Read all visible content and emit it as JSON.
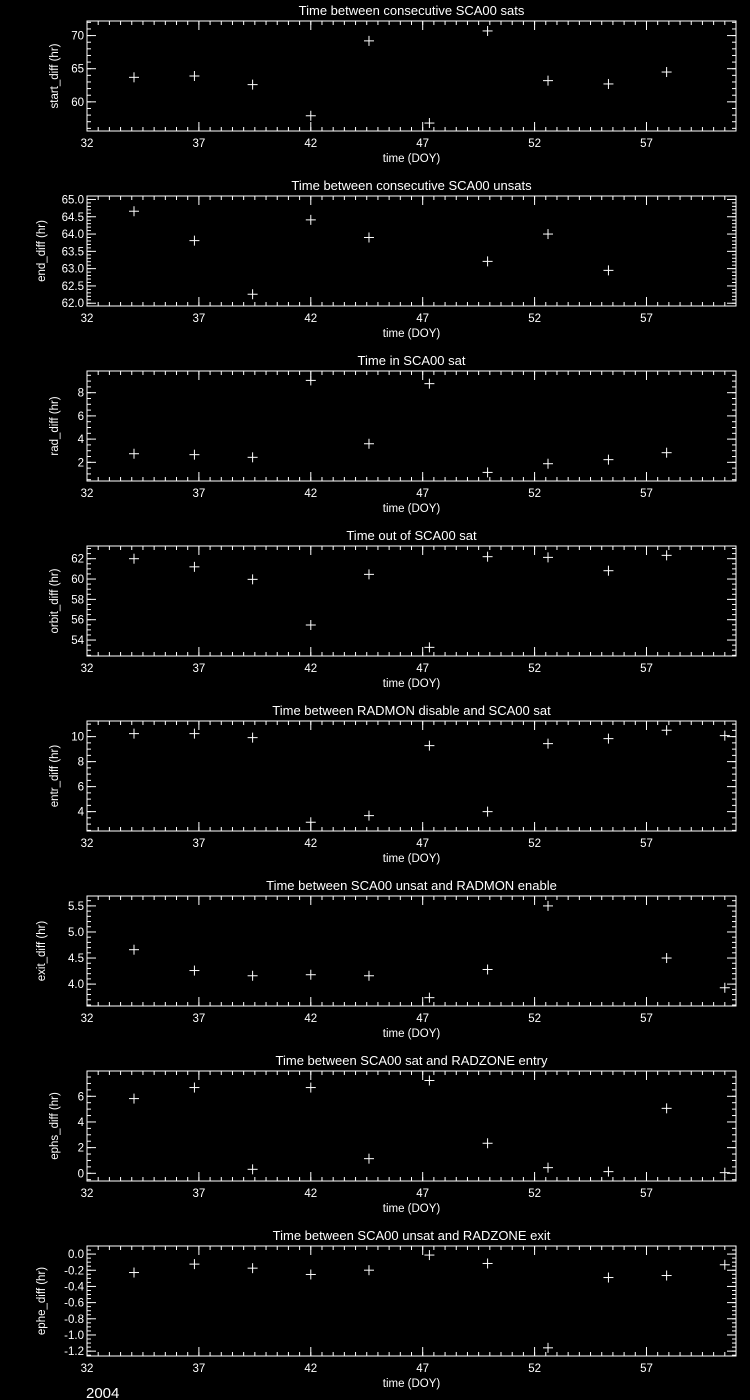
{
  "footer_year": "2004",
  "colors": {
    "background": "#000000",
    "foreground": "#ffffff"
  },
  "chart_data": [
    {
      "type": "scatter",
      "marker": "plus",
      "title": "Time between consecutive SCA00 sats",
      "xlabel": "time (DOY)",
      "ylabel": "start_diff (hr)",
      "xlim": [
        32,
        61
      ],
      "xticks": [
        32,
        37,
        42,
        47,
        52,
        57
      ],
      "x_minor": 0.5,
      "ylim": [
        55.6,
        72.2
      ],
      "yticks": [
        60,
        65,
        70
      ],
      "ytick_labels": [
        "60",
        "65",
        "70"
      ],
      "y_minor": 1,
      "x": [
        34.1,
        36.8,
        39.4,
        42.0,
        44.6,
        47.3,
        49.9,
        52.6,
        55.3,
        57.9
      ],
      "y": [
        63.7,
        63.9,
        62.6,
        57.9,
        69.2,
        56.8,
        70.7,
        63.2,
        62.7,
        64.5
      ]
    },
    {
      "type": "scatter",
      "marker": "plus",
      "title": "Time between consecutive SCA00 unsats",
      "xlabel": "time (DOY)",
      "ylabel": "end_diff (hr)",
      "xlim": [
        32,
        61
      ],
      "xticks": [
        32,
        37,
        42,
        47,
        52,
        57
      ],
      "x_minor": 0.5,
      "ylim": [
        61.92,
        65.1
      ],
      "yticks": [
        62.0,
        62.5,
        63.0,
        63.5,
        64.0,
        64.5,
        65.0
      ],
      "ytick_labels": [
        "62.0",
        "62.5",
        "63.0",
        "63.5",
        "64.0",
        "64.5",
        "65.0"
      ],
      "y_minor": 0.1,
      "x": [
        34.1,
        36.8,
        39.4,
        42.0,
        44.6,
        49.9,
        52.6,
        55.3
      ],
      "y": [
        64.66,
        63.81,
        62.26,
        64.41,
        63.9,
        63.21,
        64.0,
        62.95
      ]
    },
    {
      "type": "scatter",
      "marker": "plus",
      "title": "Time in SCA00 sat",
      "xlabel": "time (DOY)",
      "ylabel": "rad_diff (hr)",
      "xlim": [
        32,
        61
      ],
      "xticks": [
        32,
        37,
        42,
        47,
        52,
        57
      ],
      "x_minor": 0.5,
      "ylim": [
        0.39,
        9.87
      ],
      "yticks": [
        2,
        4,
        6,
        8
      ],
      "ytick_labels": [
        "2",
        "4",
        "6",
        "8"
      ],
      "y_minor": 0.5,
      "x": [
        34.1,
        36.8,
        39.4,
        42.0,
        44.6,
        47.3,
        49.9,
        52.6,
        55.3,
        57.9
      ],
      "y": [
        2.74,
        2.66,
        2.43,
        9.06,
        3.6,
        8.78,
        1.13,
        1.88,
        2.23,
        2.83
      ]
    },
    {
      "type": "scatter",
      "marker": "plus",
      "title": "Time out of SCA00 sat",
      "xlabel": "time (DOY)",
      "ylabel": "orbit_diff (hr)",
      "xlim": [
        32,
        61
      ],
      "xticks": [
        32,
        37,
        42,
        47,
        52,
        57
      ],
      "x_minor": 0.5,
      "ylim": [
        52.43,
        63.25
      ],
      "yticks": [
        54,
        56,
        58,
        60,
        62
      ],
      "ytick_labels": [
        "54",
        "56",
        "58",
        "60",
        "62"
      ],
      "y_minor": 0.5,
      "x": [
        34.1,
        36.8,
        39.4,
        42.0,
        44.6,
        47.3,
        49.9,
        52.6,
        55.3,
        57.9
      ],
      "y": [
        62.0,
        61.2,
        59.97,
        55.48,
        60.46,
        53.28,
        62.2,
        62.13,
        60.82,
        62.33
      ]
    },
    {
      "type": "scatter",
      "marker": "plus",
      "title": "Time between RADMON disable and SCA00 sat",
      "xlabel": "time (DOY)",
      "ylabel": "entr_diff (hr)",
      "xlim": [
        32,
        61
      ],
      "xticks": [
        32,
        37,
        42,
        47,
        52,
        57
      ],
      "x_minor": 0.5,
      "ylim": [
        2.45,
        11.25
      ],
      "yticks": [
        4,
        6,
        8,
        10
      ],
      "ytick_labels": [
        "4",
        "6",
        "8",
        "10"
      ],
      "y_minor": 0.5,
      "x": [
        34.1,
        36.8,
        39.4,
        42.0,
        44.6,
        47.3,
        49.9,
        52.6,
        55.3,
        57.9,
        60.5
      ],
      "y": [
        10.24,
        10.24,
        9.92,
        3.15,
        3.68,
        9.28,
        4.0,
        9.44,
        9.84,
        10.51,
        10.08
      ]
    },
    {
      "type": "scatter",
      "marker": "plus",
      "title": "Time between SCA00 unsat and RADMON enable",
      "xlabel": "time (DOY)",
      "ylabel": "exit_diff (hr)",
      "xlim": [
        32,
        61
      ],
      "xticks": [
        32,
        37,
        42,
        47,
        52,
        57
      ],
      "x_minor": 0.5,
      "ylim": [
        3.58,
        5.69
      ],
      "yticks": [
        4.0,
        4.5,
        5.0,
        5.5
      ],
      "ytick_labels": [
        "4.0",
        "4.5",
        "5.0",
        "5.5"
      ],
      "y_minor": 0.1,
      "x": [
        34.1,
        36.8,
        39.4,
        42.0,
        44.6,
        47.3,
        49.9,
        52.6,
        57.9,
        60.5
      ],
      "y": [
        4.66,
        4.26,
        4.16,
        4.18,
        4.16,
        3.74,
        4.28,
        5.5,
        4.5,
        3.93
      ]
    },
    {
      "type": "scatter",
      "marker": "plus",
      "title": "Time between SCA00 sat and RADZONE entry",
      "xlabel": "time (DOY)",
      "ylabel": "ephs_diff (hr)",
      "xlim": [
        32,
        61
      ],
      "xticks": [
        32,
        37,
        42,
        47,
        52,
        57
      ],
      "x_minor": 0.5,
      "ylim": [
        -0.6,
        7.97
      ],
      "yticks": [
        0,
        2,
        4,
        6
      ],
      "ytick_labels": [
        "0",
        "2",
        "4",
        "6"
      ],
      "y_minor": 0.5,
      "x": [
        34.1,
        36.8,
        39.4,
        42.0,
        44.6,
        47.3,
        49.9,
        52.6,
        55.3,
        57.9,
        60.5
      ],
      "y": [
        5.82,
        6.68,
        0.31,
        6.68,
        1.14,
        7.23,
        2.34,
        0.44,
        0.13,
        5.06,
        0.05
      ]
    },
    {
      "type": "scatter",
      "marker": "plus",
      "title": "Time between SCA00 unsat and RADZONE exit",
      "xlabel": "time (DOY)",
      "ylabel": "ephe_diff (hr)",
      "xlim": [
        32,
        61
      ],
      "xticks": [
        32,
        37,
        42,
        47,
        52,
        57
      ],
      "x_minor": 0.5,
      "ylim": [
        -1.26,
        0.1
      ],
      "yticks": [
        -1.2,
        -1.0,
        -0.8,
        -0.6,
        -0.4,
        -0.2,
        0.0
      ],
      "ytick_labels": [
        "-1.2",
        "-1.0",
        "-0.8",
        "-0.6",
        "-0.4",
        "-0.2",
        "0.0"
      ],
      "y_minor": 0.05,
      "x": [
        34.1,
        36.8,
        39.4,
        42.0,
        44.6,
        47.3,
        49.9,
        52.6,
        55.3,
        57.9,
        60.5
      ],
      "y": [
        -0.228,
        -0.124,
        -0.174,
        -0.252,
        -0.199,
        -0.012,
        -0.116,
        -1.159,
        -0.29,
        -0.265,
        -0.132
      ]
    }
  ]
}
